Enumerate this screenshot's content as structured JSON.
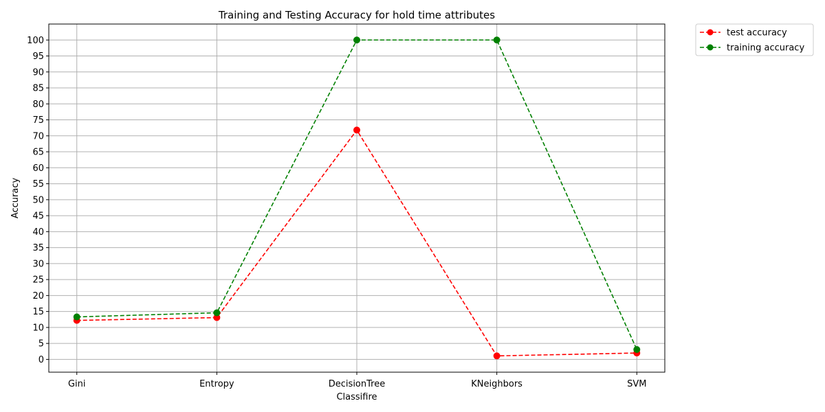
{
  "chart_data": {
    "type": "line",
    "title": "Training and Testing Accuracy for hold time attributes",
    "xlabel": "Classifire",
    "ylabel": "Accuracy",
    "categories": [
      "Gini",
      "Entropy",
      "DecisionTree",
      "KNeighbors",
      "SVM"
    ],
    "ylim": [
      -4,
      105
    ],
    "yticks": [
      0,
      5,
      10,
      15,
      20,
      25,
      30,
      35,
      40,
      45,
      50,
      55,
      60,
      65,
      70,
      75,
      80,
      85,
      90,
      95,
      100
    ],
    "grid": true,
    "legend_position": "outside-top-right",
    "series": [
      {
        "name": "test accuracy",
        "color": "#ff0000",
        "line_style": "dashed",
        "marker": "circle",
        "values": [
          12.2,
          13.1,
          71.8,
          1.1,
          2.0
        ]
      },
      {
        "name": "training accuracy",
        "color": "#008000",
        "line_style": "dashed",
        "marker": "circle",
        "values": [
          13.3,
          14.6,
          100,
          100,
          3.1
        ]
      }
    ]
  }
}
